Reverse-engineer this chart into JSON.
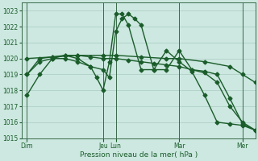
{
  "bg_color": "#cce8e0",
  "grid_color": "#b0d0c8",
  "line_color": "#1a5c2a",
  "ylim": [
    1015,
    1023.5
  ],
  "yticks": [
    1015,
    1016,
    1017,
    1018,
    1019,
    1020,
    1021,
    1022,
    1023
  ],
  "xlabel": "Pression niveau de la mer( hPa )",
  "xlabel_color": "#1a5c2a",
  "day_labels": [
    "Dim",
    "Jeu",
    "Lun",
    "Mar",
    "Mer"
  ],
  "day_positions": [
    0,
    72,
    84,
    144,
    204
  ],
  "xlim": [
    -5,
    216
  ],
  "series": [
    {
      "x": [
        0,
        12,
        24,
        36,
        48,
        60,
        72,
        84,
        96,
        108,
        120,
        132,
        144,
        156,
        168,
        180,
        192,
        204,
        216
      ],
      "y": [
        1019.0,
        1020.0,
        1020.1,
        1020.2,
        1020.2,
        1020.1,
        1020.0,
        1020.0,
        1019.9,
        1019.8,
        1019.7,
        1019.6,
        1019.5,
        1019.3,
        1019.1,
        1018.5,
        1017.0,
        1016.0,
        1015.5
      ],
      "marker": "D",
      "markersize": 2.5,
      "linewidth": 1.0,
      "linestyle": "-"
    },
    {
      "x": [
        0,
        24,
        48,
        72,
        84,
        108,
        132,
        144,
        168,
        192,
        204,
        216
      ],
      "y": [
        1020.0,
        1020.1,
        1020.2,
        1020.2,
        1020.2,
        1020.1,
        1020.0,
        1020.0,
        1019.8,
        1019.5,
        1019.0,
        1018.5
      ],
      "marker": "D",
      "markersize": 2.5,
      "linewidth": 1.0,
      "linestyle": "-"
    },
    {
      "x": [
        0,
        12,
        24,
        36,
        48,
        60,
        72,
        78,
        84,
        90,
        96,
        102,
        108,
        120,
        132,
        144,
        156,
        168,
        180,
        192,
        204,
        216
      ],
      "y": [
        1019.0,
        1019.8,
        1020.0,
        1020.2,
        1020.0,
        1019.5,
        1019.3,
        1018.8,
        1021.7,
        1022.5,
        1022.8,
        1022.5,
        1022.1,
        1019.3,
        1019.3,
        1020.5,
        1019.3,
        1019.2,
        1019.0,
        1017.5,
        1015.9,
        1015.5
      ],
      "marker": "D",
      "markersize": 2.5,
      "linewidth": 1.0,
      "linestyle": "-"
    },
    {
      "x": [
        0,
        12,
        24,
        36,
        48,
        60,
        66,
        72,
        78,
        84,
        90,
        96,
        108,
        120,
        132,
        144,
        156,
        168,
        180,
        192,
        204,
        216
      ],
      "y": [
        1017.7,
        1019.0,
        1020.0,
        1020.0,
        1019.8,
        1019.5,
        1018.8,
        1018.0,
        1019.8,
        1022.8,
        1022.8,
        1022.1,
        1019.3,
        1019.3,
        1020.5,
        1019.8,
        1019.2,
        1017.7,
        1016.0,
        1015.9,
        1015.8,
        1015.5
      ],
      "marker": "D",
      "markersize": 2.5,
      "linewidth": 1.0,
      "linestyle": "-"
    }
  ]
}
